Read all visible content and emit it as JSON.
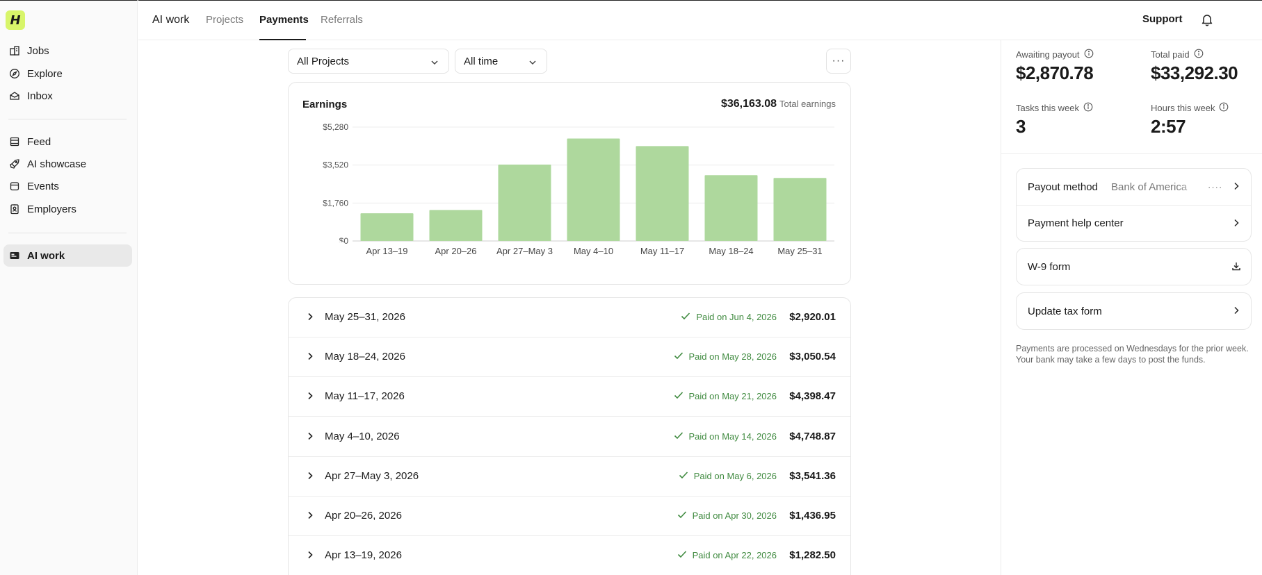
{
  "sidebar": {
    "logo": "H",
    "items": [
      {
        "label": "Jobs",
        "icon": "building-icon"
      },
      {
        "label": "Explore",
        "icon": "compass-icon"
      },
      {
        "label": "Inbox",
        "icon": "inbox-icon"
      },
      {
        "label": "Feed",
        "icon": "feed-icon"
      },
      {
        "label": "AI showcase",
        "icon": "rocket-icon"
      },
      {
        "label": "Events",
        "icon": "calendar-icon"
      },
      {
        "label": "Employers",
        "icon": "badge-icon"
      },
      {
        "label": "AI work",
        "icon": "id-card-icon",
        "active": true
      }
    ]
  },
  "topbar": {
    "brand": "AI work",
    "tabs": [
      "Projects",
      "Payments",
      "Referrals"
    ],
    "active_tab": "Payments",
    "support_label": "Support"
  },
  "filters": {
    "project": "All Projects",
    "time": "All time",
    "more": "···"
  },
  "earnings": {
    "title": "Earnings",
    "total": "$36,163.08",
    "total_label": "Total earnings"
  },
  "chart_data": {
    "type": "bar",
    "categories": [
      "Apr 13–19",
      "Apr 20–26",
      "Apr 27–May 3",
      "May 4–10",
      "May 11–17",
      "May 18–24",
      "May 25–31"
    ],
    "values": [
      1282.5,
      1436.95,
      3541.36,
      4748.87,
      4398.47,
      3050.54,
      2920.01
    ],
    "ylim": [
      0,
      5280
    ],
    "yticks": [
      0,
      1760,
      3520,
      5280
    ],
    "ytick_labels": [
      "$0",
      "$1,760",
      "$3,520",
      "$5,280"
    ],
    "grid": true,
    "bar_color": "#aed89d"
  },
  "payments": [
    {
      "period": "May 25–31, 2026",
      "status": "Paid on Jun 4, 2026",
      "amount": "$2,920.01"
    },
    {
      "period": "May 18–24, 2026",
      "status": "Paid on May 28, 2026",
      "amount": "$3,050.54"
    },
    {
      "period": "May 11–17, 2026",
      "status": "Paid on May 21, 2026",
      "amount": "$4,398.47"
    },
    {
      "period": "May 4–10, 2026",
      "status": "Paid on May 14, 2026",
      "amount": "$4,748.87"
    },
    {
      "period": "Apr 27–May 3, 2026",
      "status": "Paid on May 6, 2026",
      "amount": "$3,541.36"
    },
    {
      "period": "Apr 20–26, 2026",
      "status": "Paid on Apr 30, 2026",
      "amount": "$1,436.95"
    },
    {
      "period": "Apr 13–19, 2026",
      "status": "Paid on Apr 22, 2026",
      "amount": "$1,282.50"
    }
  ],
  "stats": {
    "awaiting_payout": {
      "label": "Awaiting payout",
      "value": "$2,870.78"
    },
    "total_paid": {
      "label": "Total paid",
      "value": "$33,292.30"
    },
    "tasks_this_week": {
      "label": "Tasks this week",
      "value": "3"
    },
    "hours_this_week": {
      "label": "Hours this week",
      "value": "2:57"
    }
  },
  "links": {
    "payout_method_label": "Payout method",
    "payout_method_value": "Bank of America",
    "payout_method_dots": "····",
    "help_center": "Payment help center",
    "w9_form": "W-9 form",
    "update_tax": "Update tax form"
  },
  "note": "Payments are processed on Wednesdays for the prior week. Your bank may take a few days to post the funds.",
  "colors": {
    "accent": "#d8f56a",
    "paid_green": "#3f8a3f",
    "bar": "#aed89d"
  }
}
